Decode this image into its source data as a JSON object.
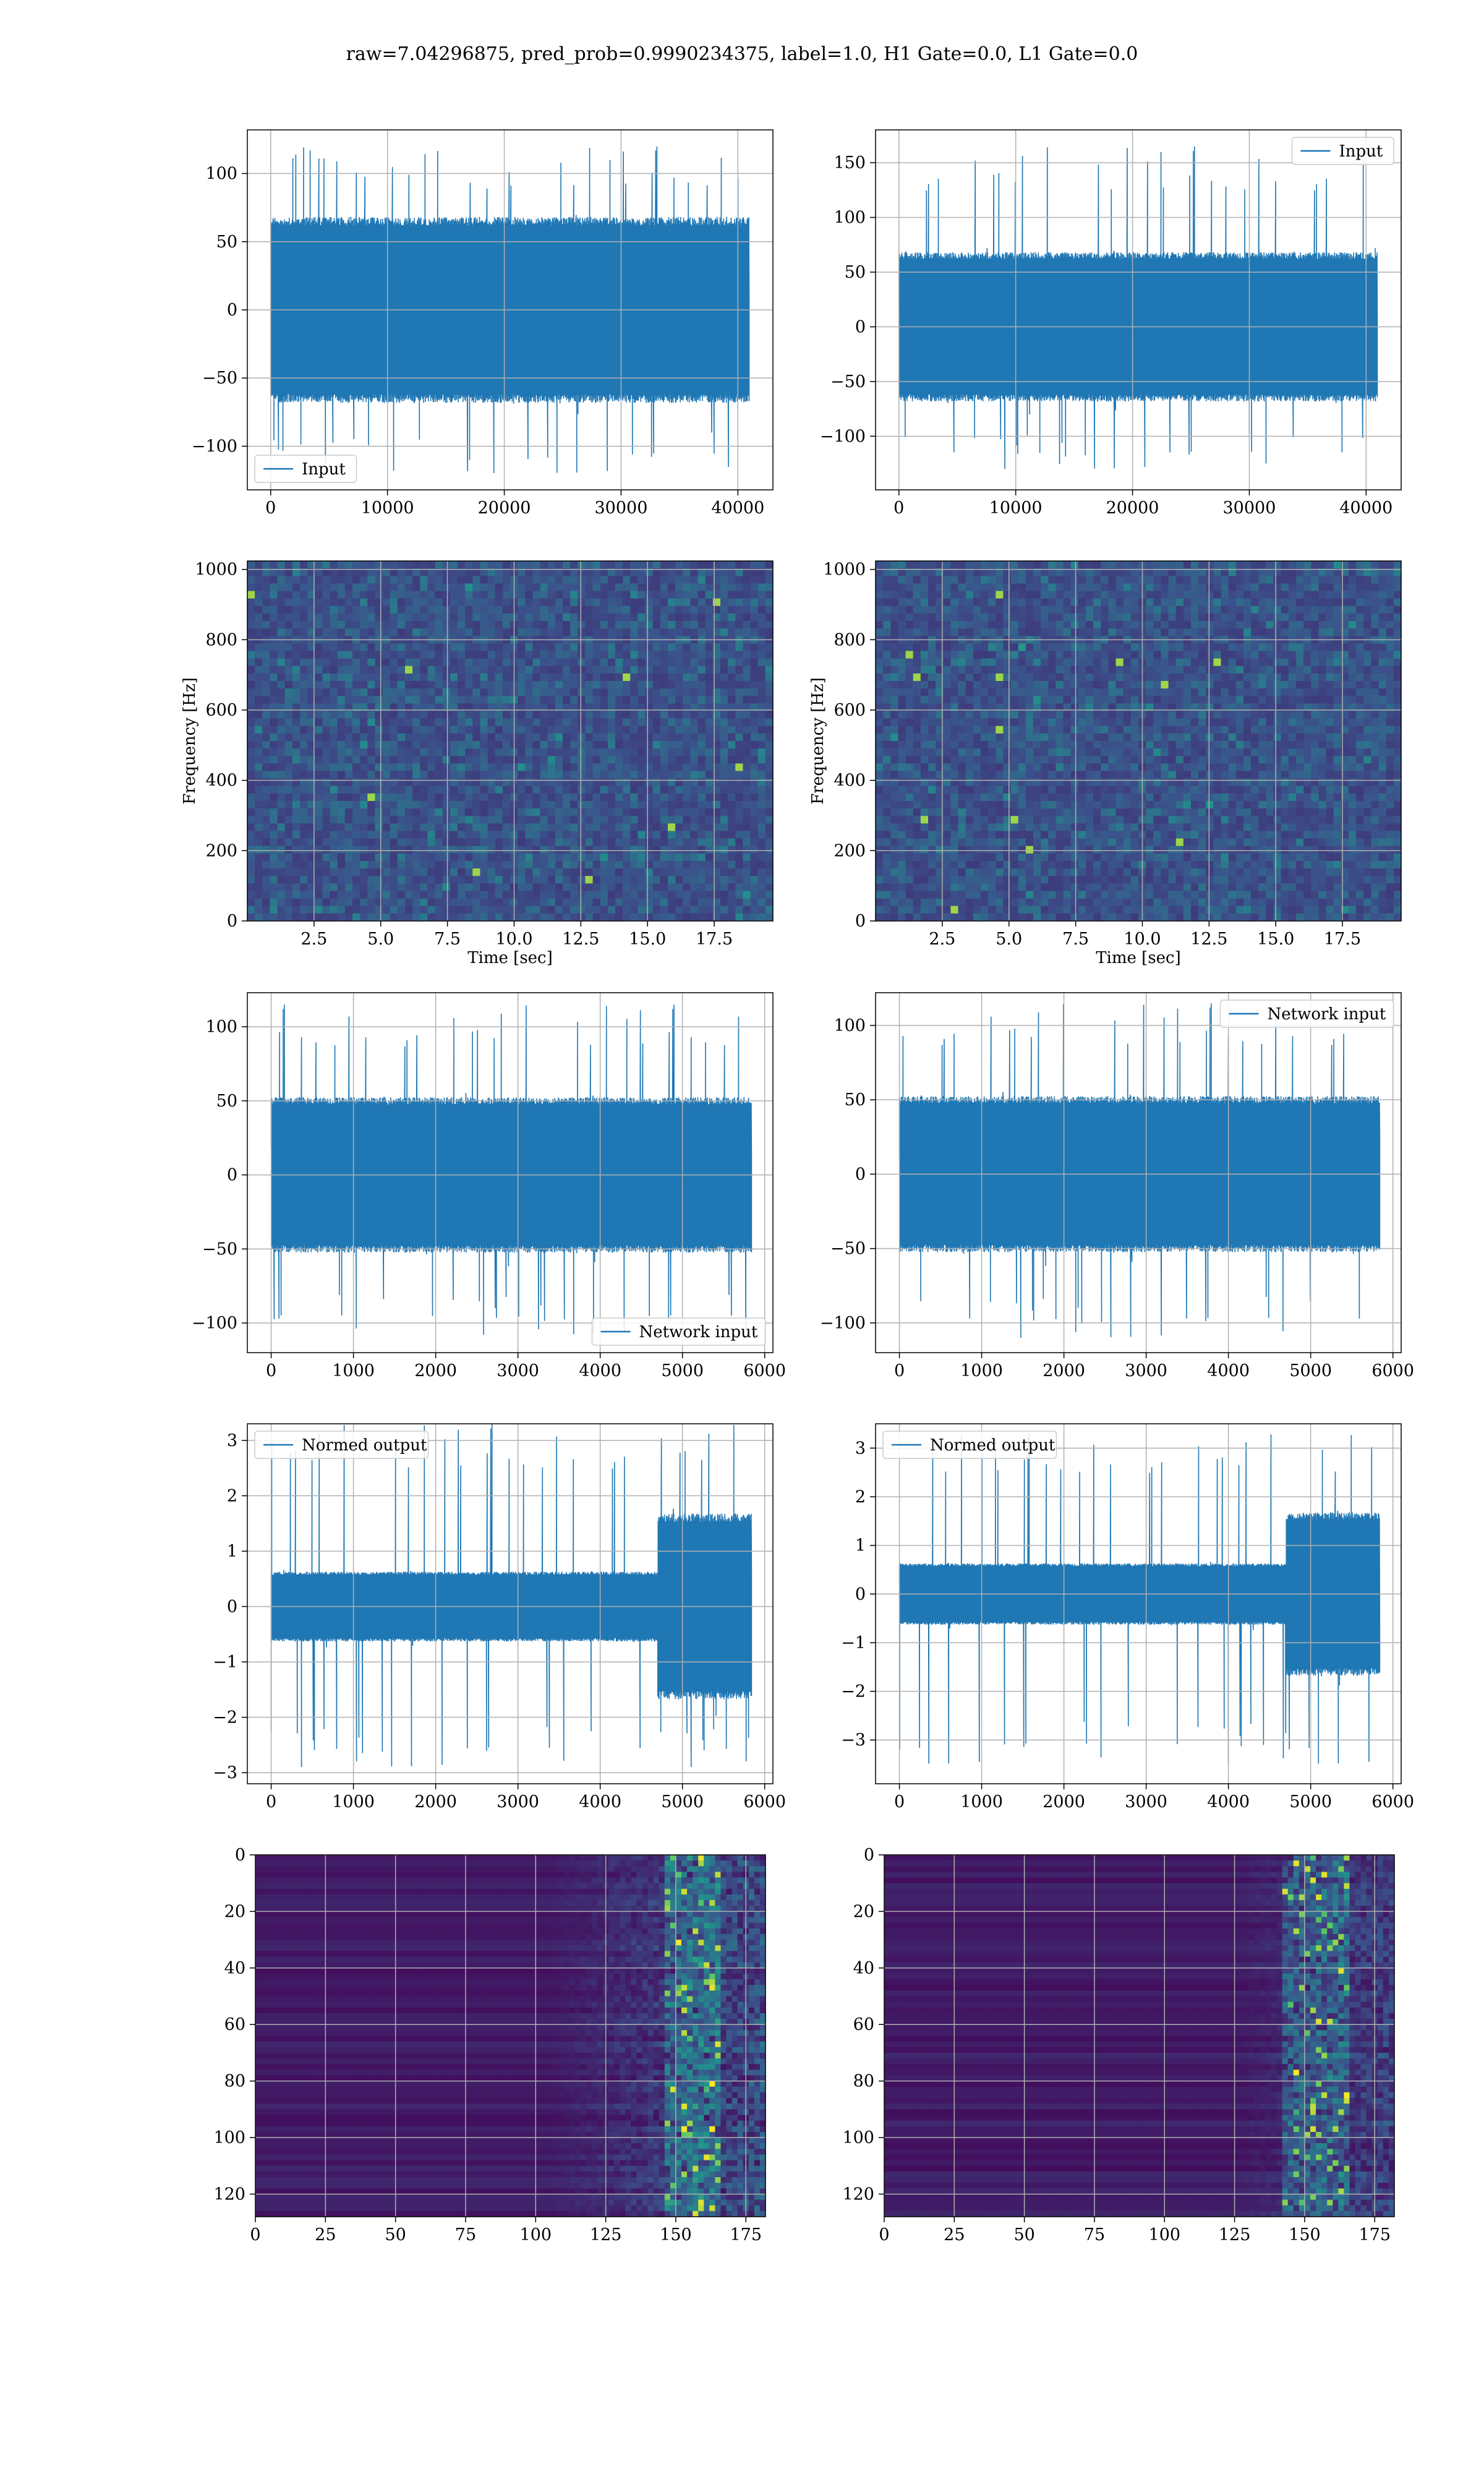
{
  "figure": {
    "title": "raw=7.04296875, pred_prob=0.9990234375, label=1.0, H1 Gate=0.0, L1 Gate=0.0",
    "colors": {
      "line": "#1f77b4",
      "grid": "#b0b0b0",
      "viridis_low": "#440154",
      "viridis_high": "#fde725"
    }
  },
  "chart_data": [
    {
      "id": "input-h1",
      "type": "line",
      "series": [
        {
          "name": "Input"
        }
      ],
      "legend_position": "lower left",
      "xlim": [
        -2000,
        43000
      ],
      "ylim": [
        -132,
        132
      ],
      "xticks": [
        0,
        10000,
        20000,
        30000,
        40000
      ],
      "yticks": [
        -100,
        -50,
        0,
        50,
        100
      ],
      "n_points": 40960,
      "amplitude_envelope": 65,
      "peak_range": [
        -120,
        120
      ],
      "grid": true,
      "xlabel": "",
      "ylabel": ""
    },
    {
      "id": "input-l1",
      "type": "line",
      "series": [
        {
          "name": "Input"
        }
      ],
      "legend_position": "upper right",
      "xlim": [
        -2000,
        43000
      ],
      "ylim": [
        -149,
        180
      ],
      "xticks": [
        0,
        10000,
        20000,
        30000,
        40000
      ],
      "yticks": [
        -100,
        -50,
        0,
        50,
        100,
        150
      ],
      "n_points": 40960,
      "amplitude_envelope": 65,
      "peak_range": [
        -130,
        165
      ],
      "grid": true,
      "xlabel": "",
      "ylabel": ""
    },
    {
      "id": "spectrogram-h1",
      "type": "heatmap",
      "xlabel": "Time [sec]",
      "ylabel": "Frequency [Hz]",
      "xlim": [
        0,
        19.7
      ],
      "ylim": [
        0,
        1024
      ],
      "xticks": [
        2.5,
        5.0,
        7.5,
        10.0,
        12.5,
        15.0,
        17.5
      ],
      "yticks": [
        0,
        200,
        400,
        600,
        800,
        1000
      ],
      "xtick_labels": [
        "2.5",
        "5.0",
        "7.5",
        "10.0",
        "12.5",
        "15.0",
        "17.5"
      ],
      "colormap": "viridis",
      "grid": true
    },
    {
      "id": "spectrogram-l1",
      "type": "heatmap",
      "xlabel": "Time [sec]",
      "ylabel": "Frequency [Hz]",
      "xlim": [
        0,
        19.7
      ],
      "ylim": [
        0,
        1024
      ],
      "xticks": [
        2.5,
        5.0,
        7.5,
        10.0,
        12.5,
        15.0,
        17.5
      ],
      "yticks": [
        0,
        200,
        400,
        600,
        800,
        1000
      ],
      "xtick_labels": [
        "2.5",
        "5.0",
        "7.5",
        "10.0",
        "12.5",
        "15.0",
        "17.5"
      ],
      "colormap": "viridis",
      "grid": true
    },
    {
      "id": "network-input-h1",
      "type": "line",
      "series": [
        {
          "name": "Network input"
        }
      ],
      "legend_position": "lower right",
      "xlim": [
        -290,
        6100
      ],
      "ylim": [
        -120,
        123
      ],
      "xticks": [
        0,
        1000,
        2000,
        3000,
        4000,
        5000,
        6000
      ],
      "yticks": [
        -100,
        -50,
        0,
        50,
        100
      ],
      "n_points": 5840,
      "amplitude_envelope": 50,
      "peak_range": [
        -108,
        115
      ],
      "grid": true,
      "xlabel": "",
      "ylabel": ""
    },
    {
      "id": "network-input-l1",
      "type": "line",
      "series": [
        {
          "name": "Network input"
        }
      ],
      "legend_position": "upper right",
      "xlim": [
        -290,
        6100
      ],
      "ylim": [
        -120,
        122
      ],
      "xticks": [
        0,
        1000,
        2000,
        3000,
        4000,
        5000,
        6000
      ],
      "yticks": [
        -100,
        -50,
        0,
        50,
        100
      ],
      "n_points": 5840,
      "amplitude_envelope": 50,
      "peak_range": [
        -110,
        115
      ],
      "grid": true,
      "xlabel": "",
      "ylabel": ""
    },
    {
      "id": "normed-output-h1",
      "type": "line",
      "series": [
        {
          "name": "Normed output"
        }
      ],
      "legend_position": "upper left",
      "xlim": [
        -290,
        6100
      ],
      "ylim": [
        -3.2,
        3.3
      ],
      "xticks": [
        0,
        1000,
        2000,
        3000,
        4000,
        5000,
        6000
      ],
      "yticks": [
        -3,
        -2,
        -1,
        0,
        1,
        2,
        3
      ],
      "n_points": 5840,
      "amplitude_envelope": 0.6,
      "burst_x": [
        4700,
        5800
      ],
      "burst_amplitude": 1.6,
      "peak_range": [
        -2.9,
        3.3
      ],
      "grid": true,
      "xlabel": "",
      "ylabel": ""
    },
    {
      "id": "normed-output-l1",
      "type": "line",
      "series": [
        {
          "name": "Normed output"
        }
      ],
      "legend_position": "upper left",
      "xlim": [
        -290,
        6100
      ],
      "ylim": [
        -3.9,
        3.5
      ],
      "xticks": [
        0,
        1000,
        2000,
        3000,
        4000,
        5000,
        6000
      ],
      "yticks": [
        -3,
        -2,
        -1,
        0,
        1,
        2,
        3
      ],
      "n_points": 5840,
      "amplitude_envelope": 0.6,
      "burst_x": [
        4700,
        5800
      ],
      "burst_amplitude": 1.6,
      "peak_range": [
        -3.5,
        3.3
      ],
      "grid": true,
      "xlabel": "",
      "ylabel": ""
    },
    {
      "id": "feature-map-h1",
      "type": "heatmap",
      "colormap": "viridis",
      "grid": true,
      "xlim": [
        0,
        182
      ],
      "ylim": [
        128,
        0
      ],
      "xticks": [
        0,
        25,
        50,
        75,
        100,
        125,
        150,
        175
      ],
      "yticks": [
        0,
        20,
        40,
        60,
        80,
        100,
        120
      ],
      "activity_onset_x": 105,
      "peak_activity_x": [
        155,
        165
      ],
      "xlabel": "",
      "ylabel": ""
    },
    {
      "id": "feature-map-l1",
      "type": "heatmap",
      "colormap": "viridis",
      "grid": true,
      "xlim": [
        0,
        182
      ],
      "ylim": [
        128,
        0
      ],
      "xticks": [
        0,
        25,
        50,
        75,
        100,
        125,
        150,
        175
      ],
      "yticks": [
        0,
        20,
        40,
        60,
        80,
        100,
        120
      ],
      "activity_onset_x": 125,
      "peak_activity_x": [
        150,
        165
      ],
      "xlabel": "",
      "ylabel": ""
    }
  ]
}
